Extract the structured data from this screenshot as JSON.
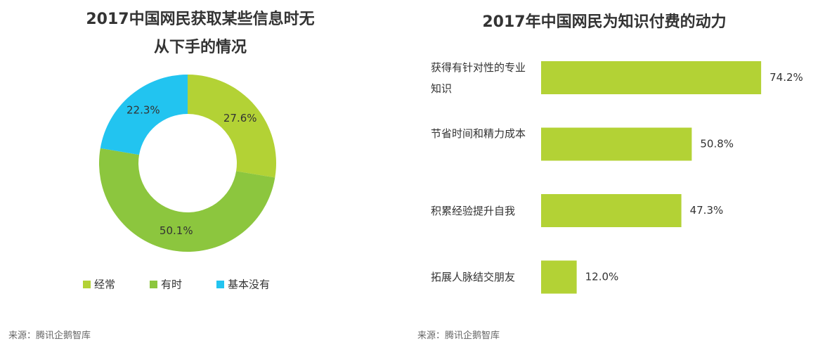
{
  "chart_data": [
    {
      "type": "pie",
      "title": "2017中国网民获取某些信息时无从下手的情况",
      "categories": [
        "经常",
        "有时",
        "基本没有"
      ],
      "values": [
        27.6,
        50.1,
        22.3
      ],
      "value_labels": [
        "27.6%",
        "50.1%",
        "22.3%"
      ],
      "colors": [
        "#b3d235",
        "#8cc63e",
        "#22c4f0"
      ],
      "legend": "bottom",
      "source": "来源：腾讯企鹅智库"
    },
    {
      "type": "bar",
      "orientation": "horizontal",
      "title": "2017年中国网民为知识付费的动力",
      "categories": [
        "获得有针对性的专业知识",
        "节省时间和精力成本",
        "积累经验提升自我",
        "拓展人脉结交朋友"
      ],
      "values": [
        74.2,
        50.8,
        47.3,
        12.0
      ],
      "value_labels": [
        "74.2%",
        "50.8%",
        "47.3%",
        "12.0%"
      ],
      "color": "#b3d235",
      "source": "来源：腾讯企鹅智库"
    }
  ]
}
